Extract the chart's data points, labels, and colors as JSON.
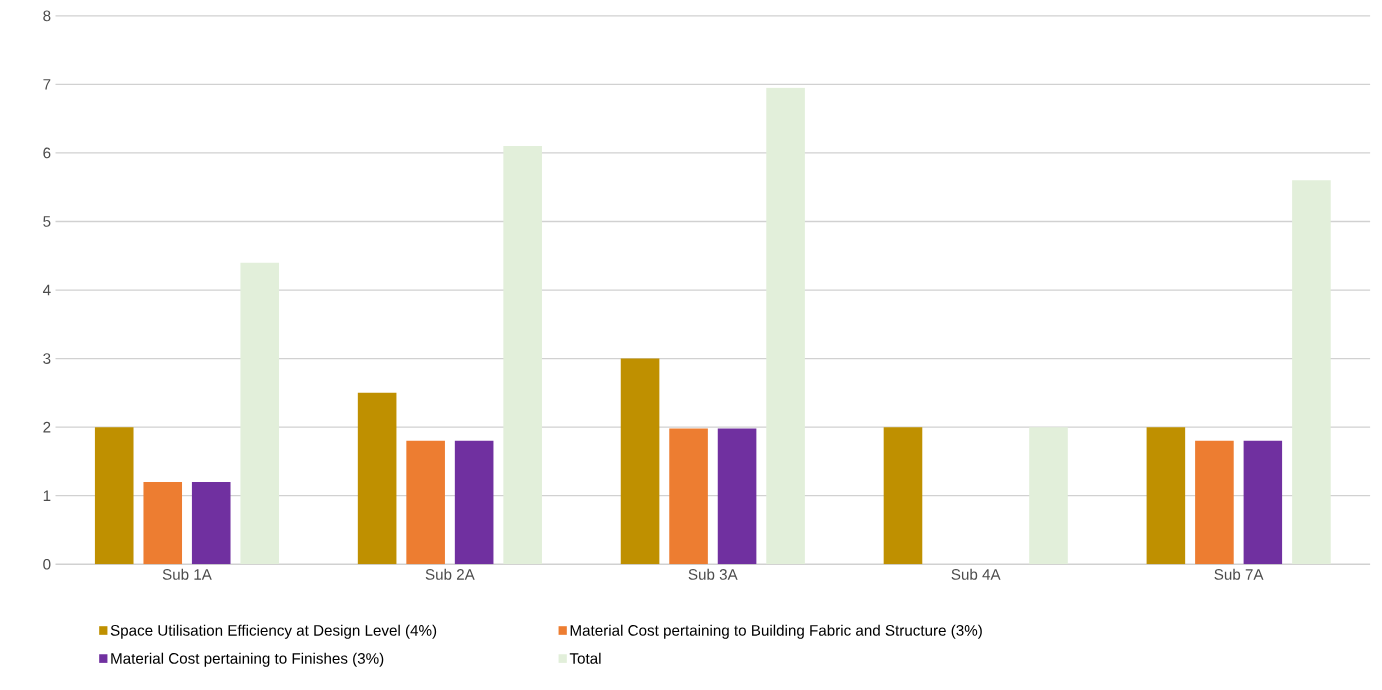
{
  "chart_data": {
    "type": "bar",
    "categories": [
      "Sub 1A",
      "Sub 2A",
      "Sub 3A",
      "Sub 4A",
      "Sub 7A"
    ],
    "series": [
      {
        "name": "Space Utilisation Efficiency at Design Level (4%)",
        "color": "#bf9000",
        "values": [
          2,
          2.5,
          3,
          2,
          2
        ]
      },
      {
        "name": "Material Cost pertaining to Building Fabric and Structure (3%)",
        "color": "#ed7d31",
        "values": [
          1.2,
          1.8,
          1.98,
          null,
          1.8
        ]
      },
      {
        "name": "Material Cost pertaining to Finishes (3%)",
        "color": "#7030a0",
        "values": [
          1.2,
          1.8,
          1.98,
          null,
          1.8
        ]
      },
      {
        "name": "Total",
        "color": "#e2efda",
        "values": [
          4.4,
          6.1,
          6.95,
          2,
          5.6
        ]
      }
    ],
    "ylim": [
      0,
      8
    ],
    "yticks": [
      0,
      1,
      2,
      3,
      4,
      5,
      6,
      7,
      8
    ],
    "grid": "y",
    "legend": "bottom"
  }
}
